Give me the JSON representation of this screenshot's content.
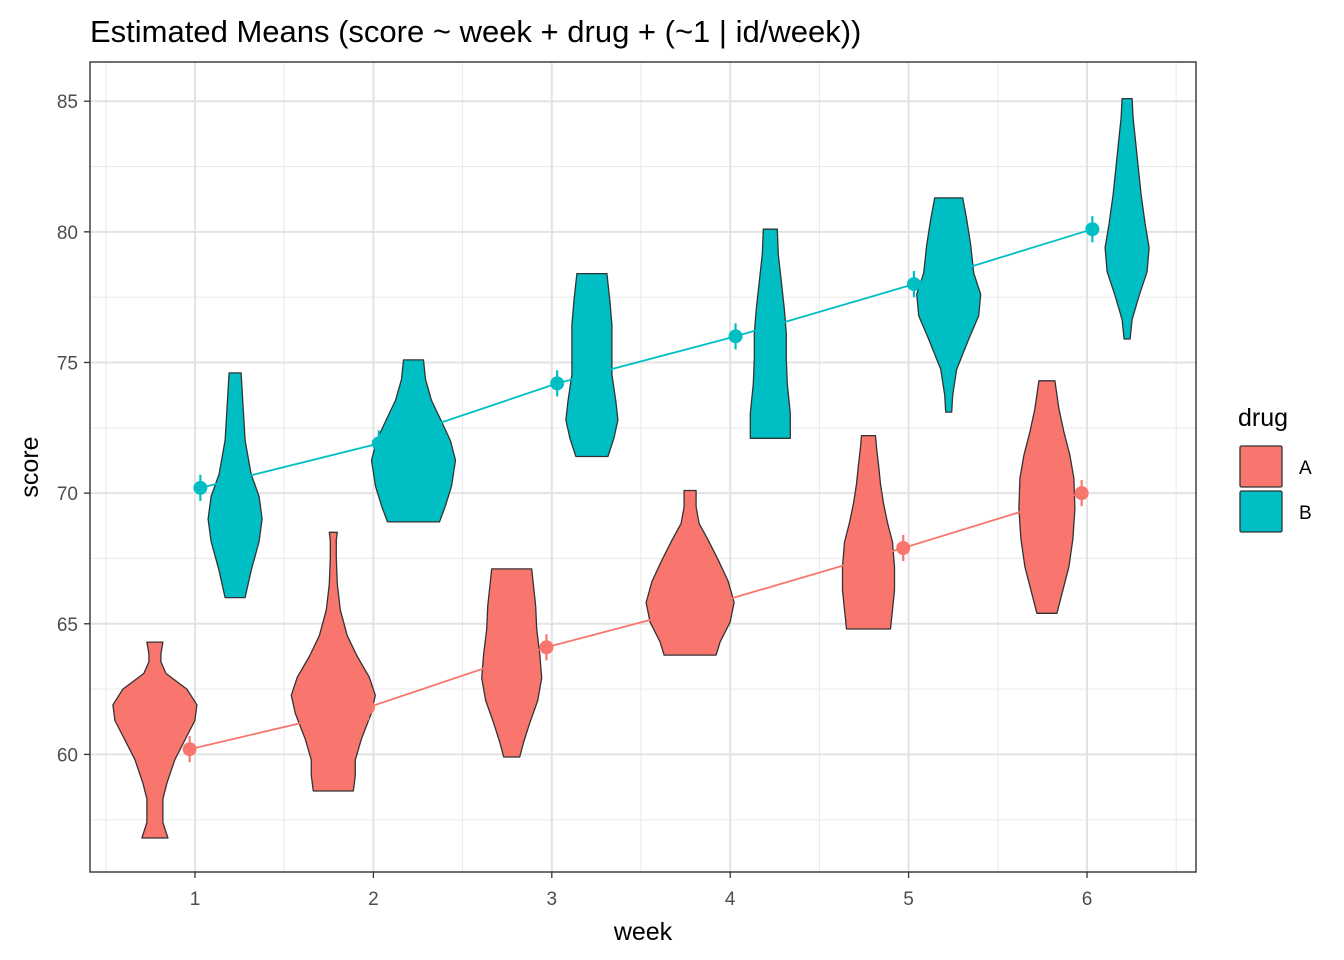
{
  "chart_data": {
    "type": "violin",
    "title": "Estimated Means (score ~ week + drug + (~1 | id/week))",
    "xlabel": "week",
    "ylabel": "score",
    "x_categories": [
      "1",
      "2",
      "3",
      "4",
      "5",
      "6"
    ],
    "yticks": [
      60,
      65,
      70,
      75,
      80,
      85
    ],
    "ylim": [
      55.5,
      86.5
    ],
    "grid": true,
    "legend": {
      "title": "drug",
      "placement": "right",
      "entries": [
        {
          "label": "A",
          "color": "#F8766D"
        },
        {
          "label": "B",
          "color": "#00BFC4"
        }
      ]
    },
    "series": [
      {
        "name": "A",
        "color": "#F8766D",
        "estimated_means": [
          60.2,
          61.8,
          64.1,
          65.9,
          67.9,
          70.0
        ],
        "ci_half_width": 0.5,
        "violins": [
          {
            "week": 1,
            "min": 56.8,
            "max": 64.3
          },
          {
            "week": 2,
            "min": 58.6,
            "max": 68.5
          },
          {
            "week": 3,
            "min": 59.9,
            "max": 67.1
          },
          {
            "week": 4,
            "min": 63.8,
            "max": 70.1
          },
          {
            "week": 5,
            "min": 64.8,
            "max": 72.2
          },
          {
            "week": 6,
            "min": 65.4,
            "max": 74.3
          }
        ]
      },
      {
        "name": "B",
        "color": "#00BFC4",
        "estimated_means": [
          70.2,
          71.9,
          74.2,
          76.0,
          78.0,
          80.1
        ],
        "ci_half_width": 0.5,
        "violins": [
          {
            "week": 1,
            "min": 66.0,
            "max": 74.6
          },
          {
            "week": 2,
            "min": 68.9,
            "max": 75.1
          },
          {
            "week": 3,
            "min": 71.4,
            "max": 78.4
          },
          {
            "week": 4,
            "min": 72.1,
            "max": 80.1
          },
          {
            "week": 5,
            "min": 73.1,
            "max": 81.3
          },
          {
            "week": 6,
            "min": 75.9,
            "max": 85.1
          }
        ]
      }
    ]
  }
}
